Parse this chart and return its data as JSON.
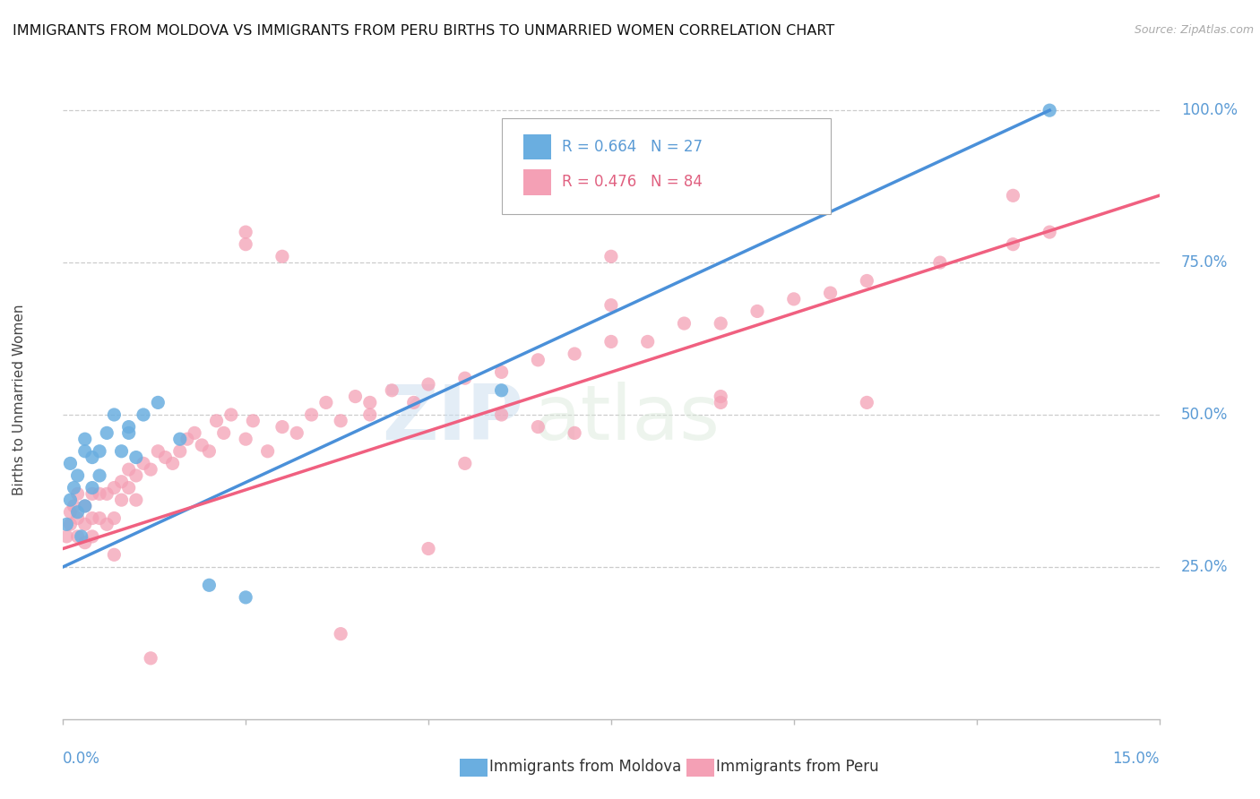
{
  "title": "IMMIGRANTS FROM MOLDOVA VS IMMIGRANTS FROM PERU BIRTHS TO UNMARRIED WOMEN CORRELATION CHART",
  "source": "Source: ZipAtlas.com",
  "ylabel_label": "Births to Unmarried Women",
  "watermark_zip": "ZIP",
  "watermark_atlas": "atlas",
  "moldova_color": "#6aaee0",
  "peru_color": "#f4a0b5",
  "moldova_line_color": "#4a90d9",
  "peru_line_color": "#f06080",
  "moldova_R": 0.664,
  "moldova_N": 27,
  "peru_R": 0.476,
  "peru_N": 84,
  "xlim": [
    0,
    0.15
  ],
  "ylim": [
    0,
    1.05
  ],
  "yticks": [
    0.25,
    0.5,
    0.75,
    1.0
  ],
  "ytick_labels": [
    "25.0%",
    "50.0%",
    "75.0%",
    "100.0%"
  ],
  "moldova_line": [
    [
      0.0,
      0.135
    ],
    [
      0.25,
      1.0
    ]
  ],
  "peru_line": [
    [
      0.0,
      0.15
    ],
    [
      0.28,
      0.86
    ]
  ],
  "moldova_scatter_x": [
    0.0005,
    0.001,
    0.001,
    0.0015,
    0.002,
    0.002,
    0.0025,
    0.003,
    0.003,
    0.003,
    0.004,
    0.004,
    0.005,
    0.005,
    0.006,
    0.007,
    0.008,
    0.009,
    0.009,
    0.01,
    0.011,
    0.013,
    0.016,
    0.02,
    0.025,
    0.06,
    0.135
  ],
  "moldova_scatter_y": [
    0.32,
    0.36,
    0.42,
    0.38,
    0.34,
    0.4,
    0.3,
    0.35,
    0.44,
    0.46,
    0.38,
    0.43,
    0.44,
    0.4,
    0.47,
    0.5,
    0.44,
    0.47,
    0.48,
    0.43,
    0.5,
    0.52,
    0.46,
    0.22,
    0.2,
    0.54,
    1.0
  ],
  "peru_scatter_x": [
    0.0005,
    0.001,
    0.001,
    0.0015,
    0.002,
    0.002,
    0.002,
    0.003,
    0.003,
    0.003,
    0.004,
    0.004,
    0.004,
    0.005,
    0.005,
    0.006,
    0.006,
    0.007,
    0.007,
    0.008,
    0.008,
    0.009,
    0.009,
    0.01,
    0.01,
    0.011,
    0.012,
    0.013,
    0.014,
    0.015,
    0.016,
    0.017,
    0.018,
    0.019,
    0.02,
    0.021,
    0.022,
    0.023,
    0.025,
    0.026,
    0.028,
    0.03,
    0.032,
    0.034,
    0.036,
    0.038,
    0.04,
    0.042,
    0.045,
    0.048,
    0.05,
    0.055,
    0.06,
    0.065,
    0.07,
    0.075,
    0.08,
    0.085,
    0.09,
    0.095,
    0.1,
    0.105,
    0.11,
    0.12,
    0.13,
    0.135,
    0.007,
    0.012,
    0.03,
    0.05,
    0.075,
    0.09,
    0.11,
    0.025,
    0.038,
    0.06,
    0.09,
    0.13,
    0.07,
    0.055,
    0.025,
    0.042,
    0.065,
    0.075
  ],
  "peru_scatter_y": [
    0.3,
    0.32,
    0.34,
    0.35,
    0.3,
    0.33,
    0.37,
    0.29,
    0.32,
    0.35,
    0.3,
    0.33,
    0.37,
    0.33,
    0.37,
    0.32,
    0.37,
    0.33,
    0.38,
    0.36,
    0.39,
    0.38,
    0.41,
    0.36,
    0.4,
    0.42,
    0.41,
    0.44,
    0.43,
    0.42,
    0.44,
    0.46,
    0.47,
    0.45,
    0.44,
    0.49,
    0.47,
    0.5,
    0.46,
    0.49,
    0.44,
    0.48,
    0.47,
    0.5,
    0.52,
    0.49,
    0.53,
    0.5,
    0.54,
    0.52,
    0.55,
    0.56,
    0.57,
    0.59,
    0.6,
    0.62,
    0.62,
    0.65,
    0.65,
    0.67,
    0.69,
    0.7,
    0.72,
    0.75,
    0.78,
    0.8,
    0.27,
    0.1,
    0.76,
    0.28,
    0.76,
    0.53,
    0.52,
    0.8,
    0.14,
    0.5,
    0.52,
    0.86,
    0.47,
    0.42,
    0.78,
    0.52,
    0.48,
    0.68
  ],
  "legend_moldova_label": "Immigrants from Moldova",
  "legend_peru_label": "Immigrants from Peru",
  "title_fontsize": 11.5,
  "axis_label_fontsize": 11,
  "tick_fontsize": 12,
  "legend_fontsize": 12
}
